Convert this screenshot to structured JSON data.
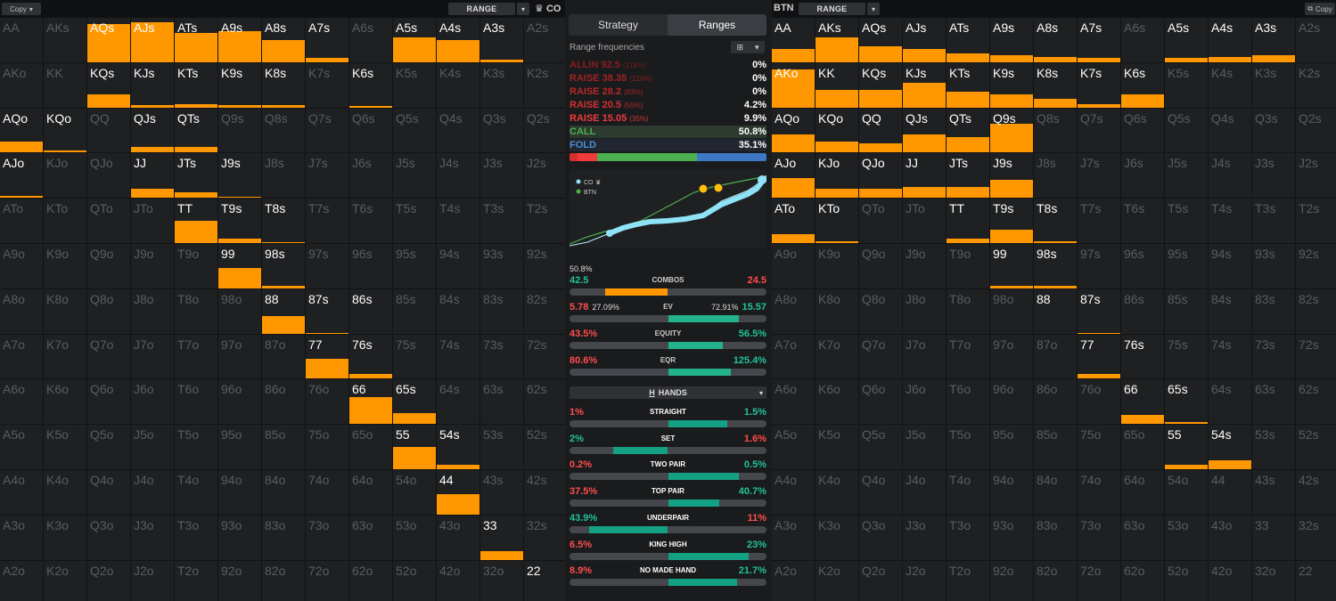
{
  "left_panel": {
    "copy_label": "Copy",
    "range_label": "RANGE",
    "position": "CO",
    "hands": [
      [
        "AA",
        "AKs",
        "AQs",
        "AJs",
        "ATs",
        "A9s",
        "A8s",
        "A7s",
        "A6s",
        "A5s",
        "A4s",
        "A3s",
        "A2s"
      ],
      [
        "AKo",
        "KK",
        "KQs",
        "KJs",
        "KTs",
        "K9s",
        "K8s",
        "K7s",
        "K6s",
        "K5s",
        "K4s",
        "K3s",
        "K2s"
      ],
      [
        "AQo",
        "KQo",
        "QQ",
        "QJs",
        "QTs",
        "Q9s",
        "Q8s",
        "Q7s",
        "Q6s",
        "Q5s",
        "Q4s",
        "Q3s",
        "Q2s"
      ],
      [
        "AJo",
        "KJo",
        "QJo",
        "JJ",
        "JTs",
        "J9s",
        "J8s",
        "J7s",
        "J6s",
        "J5s",
        "J4s",
        "J3s",
        "J2s"
      ],
      [
        "ATo",
        "KTo",
        "QTo",
        "JTo",
        "TT",
        "T9s",
        "T8s",
        "T7s",
        "T6s",
        "T5s",
        "T4s",
        "T3s",
        "T2s"
      ],
      [
        "A9o",
        "K9o",
        "Q9o",
        "J9o",
        "T9o",
        "99",
        "98s",
        "97s",
        "96s",
        "95s",
        "94s",
        "93s",
        "92s"
      ],
      [
        "A8o",
        "K8o",
        "Q8o",
        "J8o",
        "T8o",
        "98o",
        "88",
        "87s",
        "86s",
        "85s",
        "84s",
        "83s",
        "82s"
      ],
      [
        "A7o",
        "K7o",
        "Q7o",
        "J7o",
        "T7o",
        "97o",
        "87o",
        "77",
        "76s",
        "75s",
        "74s",
        "73s",
        "72s"
      ],
      [
        "A6o",
        "K6o",
        "Q6o",
        "J6o",
        "T6o",
        "96o",
        "86o",
        "76o",
        "66",
        "65s",
        "64s",
        "63s",
        "62s"
      ],
      [
        "A5o",
        "K5o",
        "Q5o",
        "J5o",
        "T5o",
        "95o",
        "85o",
        "75o",
        "65o",
        "55",
        "54s",
        "53s",
        "52s"
      ],
      [
        "A4o",
        "K4o",
        "Q4o",
        "J4o",
        "T4o",
        "94o",
        "84o",
        "74o",
        "64o",
        "54o",
        "44",
        "43s",
        "42s"
      ],
      [
        "A3o",
        "K3o",
        "Q3o",
        "J3o",
        "T3o",
        "93o",
        "83o",
        "73o",
        "63o",
        "53o",
        "43o",
        "33",
        "32s"
      ],
      [
        "A2o",
        "K2o",
        "Q2o",
        "J2o",
        "T2o",
        "92o",
        "82o",
        "72o",
        "62o",
        "52o",
        "42o",
        "32o",
        "22"
      ]
    ],
    "fills": [
      [
        0,
        0,
        0.85,
        0.9,
        0.65,
        0.7,
        0.5,
        0.1,
        0,
        0.55,
        0.5,
        0.05,
        0
      ],
      [
        0,
        0,
        0.3,
        0.05,
        0.08,
        0.05,
        0.05,
        0,
        0.03,
        0,
        0,
        0,
        0
      ],
      [
        0.25,
        0.05,
        0,
        0.12,
        0.12,
        0,
        0,
        0,
        0,
        0,
        0,
        0,
        0
      ],
      [
        0.05,
        0,
        0,
        0.2,
        0.12,
        0.02,
        0,
        0,
        0,
        0,
        0,
        0,
        0
      ],
      [
        0,
        0,
        0,
        0,
        0.5,
        0.1,
        0.02,
        0,
        0,
        0,
        0,
        0,
        0
      ],
      [
        0,
        0,
        0,
        0,
        0,
        0.45,
        0.05,
        0,
        0,
        0,
        0,
        0,
        0
      ],
      [
        0,
        0,
        0,
        0,
        0,
        0,
        0.4,
        0.02,
        0,
        0,
        0,
        0,
        0
      ],
      [
        0,
        0,
        0,
        0,
        0,
        0,
        0,
        0.45,
        0.1,
        0,
        0,
        0,
        0
      ],
      [
        0,
        0,
        0,
        0,
        0,
        0,
        0,
        0,
        0.6,
        0.25,
        0,
        0,
        0
      ],
      [
        0,
        0,
        0,
        0,
        0,
        0,
        0,
        0,
        0,
        0.5,
        0.1,
        0,
        0
      ],
      [
        0,
        0,
        0,
        0,
        0,
        0,
        0,
        0,
        0,
        0,
        0.45,
        0,
        0
      ],
      [
        0,
        0,
        0,
        0,
        0,
        0,
        0,
        0,
        0,
        0,
        0,
        0.2,
        0
      ],
      [
        0,
        0,
        0,
        0,
        0,
        0,
        0,
        0,
        0,
        0,
        0,
        0,
        0
      ]
    ],
    "active": [
      [
        0,
        0,
        1,
        1,
        1,
        1,
        1,
        1,
        0,
        1,
        1,
        1,
        0
      ],
      [
        0,
        0,
        1,
        1,
        1,
        1,
        1,
        0,
        1,
        0,
        0,
        0,
        0
      ],
      [
        1,
        1,
        0,
        1,
        1,
        0,
        0,
        0,
        0,
        0,
        0,
        0,
        0
      ],
      [
        1,
        0,
        0,
        1,
        1,
        1,
        0,
        0,
        0,
        0,
        0,
        0,
        0
      ],
      [
        0,
        0,
        0,
        0,
        1,
        1,
        1,
        0,
        0,
        0,
        0,
        0,
        0
      ],
      [
        0,
        0,
        0,
        0,
        0,
        1,
        1,
        0,
        0,
        0,
        0,
        0,
        0
      ],
      [
        0,
        0,
        0,
        0,
        0,
        0,
        1,
        1,
        1,
        0,
        0,
        0,
        0
      ],
      [
        0,
        0,
        0,
        0,
        0,
        0,
        0,
        1,
        1,
        0,
        0,
        0,
        0
      ],
      [
        0,
        0,
        0,
        0,
        0,
        0,
        0,
        0,
        1,
        1,
        0,
        0,
        0
      ],
      [
        0,
        0,
        0,
        0,
        0,
        0,
        0,
        0,
        0,
        1,
        1,
        0,
        0
      ],
      [
        0,
        0,
        0,
        0,
        0,
        0,
        0,
        0,
        0,
        0,
        1,
        0,
        0
      ],
      [
        0,
        0,
        0,
        0,
        0,
        0,
        0,
        0,
        0,
        0,
        0,
        1,
        0
      ],
      [
        0,
        0,
        0,
        0,
        0,
        0,
        0,
        0,
        0,
        0,
        0,
        0,
        1
      ]
    ]
  },
  "right_panel": {
    "position": "BTN",
    "range_label": "RANGE",
    "copy_label": "Copy",
    "fills": [
      [
        0.3,
        0.55,
        0.35,
        0.3,
        0.2,
        0.15,
        0.12,
        0.1,
        0,
        0.1,
        0.12,
        0.15,
        0
      ],
      [
        0.85,
        0.4,
        0.4,
        0.55,
        0.35,
        0.3,
        0.2,
        0.08,
        0.3,
        0,
        0,
        0,
        0
      ],
      [
        0.4,
        0.25,
        0.2,
        0.4,
        0.35,
        0.65,
        0,
        0,
        0,
        0,
        0,
        0,
        0
      ],
      [
        0.45,
        0.2,
        0.2,
        0.25,
        0.25,
        0.4,
        0,
        0,
        0,
        0,
        0,
        0,
        0
      ],
      [
        0.2,
        0.05,
        0,
        0,
        0.1,
        0.3,
        0.05,
        0,
        0,
        0,
        0,
        0,
        0
      ],
      [
        0,
        0,
        0,
        0,
        0,
        0.05,
        0.05,
        0,
        0,
        0,
        0,
        0,
        0
      ],
      [
        0,
        0,
        0,
        0,
        0,
        0,
        0,
        0.02,
        0,
        0,
        0,
        0,
        0
      ],
      [
        0,
        0,
        0,
        0,
        0,
        0,
        0,
        0.1,
        0,
        0,
        0,
        0,
        0
      ],
      [
        0,
        0,
        0,
        0,
        0,
        0,
        0,
        0,
        0.2,
        0.05,
        0,
        0,
        0
      ],
      [
        0,
        0,
        0,
        0,
        0,
        0,
        0,
        0,
        0,
        0.1,
        0.2,
        0,
        0
      ],
      [
        0,
        0,
        0,
        0,
        0,
        0,
        0,
        0,
        0,
        0,
        0,
        0,
        0
      ],
      [
        0,
        0,
        0,
        0,
        0,
        0,
        0,
        0,
        0,
        0,
        0,
        0,
        0
      ],
      [
        0,
        0,
        0,
        0,
        0,
        0,
        0,
        0,
        0,
        0,
        0,
        0,
        0
      ]
    ],
    "active": [
      [
        1,
        1,
        1,
        1,
        1,
        1,
        1,
        1,
        0,
        1,
        1,
        1,
        0
      ],
      [
        1,
        1,
        1,
        1,
        1,
        1,
        1,
        1,
        1,
        0,
        0,
        0,
        0
      ],
      [
        1,
        1,
        1,
        1,
        1,
        1,
        0,
        0,
        0,
        0,
        0,
        0,
        0
      ],
      [
        1,
        1,
        1,
        1,
        1,
        1,
        0,
        0,
        0,
        0,
        0,
        0,
        0
      ],
      [
        1,
        1,
        0,
        0,
        1,
        1,
        1,
        0,
        0,
        0,
        0,
        0,
        0
      ],
      [
        0,
        0,
        0,
        0,
        0,
        1,
        1,
        0,
        0,
        0,
        0,
        0,
        0
      ],
      [
        0,
        0,
        0,
        0,
        0,
        0,
        1,
        1,
        0,
        0,
        0,
        0,
        0
      ],
      [
        0,
        0,
        0,
        0,
        0,
        0,
        0,
        1,
        1,
        0,
        0,
        0,
        0
      ],
      [
        0,
        0,
        0,
        0,
        0,
        0,
        0,
        0,
        1,
        1,
        0,
        0,
        0
      ],
      [
        0,
        0,
        0,
        0,
        0,
        0,
        0,
        0,
        0,
        1,
        1,
        0,
        0
      ],
      [
        0,
        0,
        0,
        0,
        0,
        0,
        0,
        0,
        0,
        0,
        0,
        0,
        0
      ],
      [
        0,
        0,
        0,
        0,
        0,
        0,
        0,
        0,
        0,
        0,
        0,
        0,
        0
      ],
      [
        0,
        0,
        0,
        0,
        0,
        0,
        0,
        0,
        0,
        0,
        0,
        0,
        0
      ]
    ]
  },
  "middle": {
    "tabs": [
      "Strategy",
      "Ranges"
    ],
    "active_tab": 1,
    "range_frequencies_label": "Range frequencies",
    "frequencies": [
      {
        "name": "ALLIN 92.5",
        "pct": "(318%)",
        "value": "0%",
        "color": "#8b1e1e"
      },
      {
        "name": "RAISE 38.35",
        "pct": "(120%)",
        "value": "0%",
        "color": "#a02424"
      },
      {
        "name": "RAISE 28.2",
        "pct": "(83%)",
        "value": "0%",
        "color": "#b82828"
      },
      {
        "name": "RAISE 20.5",
        "pct": "(55%)",
        "value": "4.2%",
        "color": "#d43030"
      },
      {
        "name": "RAISE 15.05",
        "pct": "(35%)",
        "value": "9.9%",
        "color": "#ef3b3b"
      },
      {
        "name": "CALL",
        "pct": "",
        "value": "50.8%",
        "color": "#4caf50"
      },
      {
        "name": "FOLD",
        "pct": "",
        "value": "35.1%",
        "color": "#4a8fd8"
      }
    ],
    "stack": [
      {
        "w": 4.2,
        "c": "#d43030"
      },
      {
        "w": 9.9,
        "c": "#ef3b3b"
      },
      {
        "w": 50.8,
        "c": "#4caf50"
      },
      {
        "w": 35.1,
        "c": "#3c78c3"
      }
    ],
    "legend": {
      "co": "CO",
      "btn": "BTN"
    },
    "top_value": "50.8%",
    "stats": [
      {
        "label": "COMBOS",
        "left": "42.5",
        "right": "24.5",
        "lsub": "",
        "rsub": "",
        "fill": [
          18,
          50
        ],
        "color": "#ff9800"
      },
      {
        "label": "EV",
        "left": "5.78",
        "right": "15.57",
        "lsub": "27.09%",
        "rsub": "72.91%",
        "fill": [
          50,
          86
        ],
        "color": "#22b38a"
      },
      {
        "label": "EQUITY",
        "left": "43.5%",
        "right": "56.5%",
        "lsub": "",
        "rsub": "",
        "fill": [
          50,
          78
        ],
        "color": "#22b38a"
      },
      {
        "label": "EQR",
        "left": "80.6%",
        "right": "125.4%",
        "lsub": "",
        "rsub": "",
        "fill": [
          50,
          82
        ],
        "color": "#22b38a"
      }
    ],
    "hands_label": "HANDS",
    "hands": [
      {
        "label": "STRAIGHT",
        "left": "1%",
        "right": "1.5%",
        "lc": "red",
        "rc": "green",
        "fill": [
          50,
          80
        ]
      },
      {
        "label": "SET",
        "left": "2%",
        "right": "1.6%",
        "lc": "green",
        "rc": "red",
        "fill": [
          22,
          50
        ]
      },
      {
        "label": "TWO PAIR",
        "left": "0.2%",
        "right": "0.5%",
        "lc": "red",
        "rc": "green",
        "fill": [
          50,
          86
        ]
      },
      {
        "label": "TOP PAIR",
        "left": "37.5%",
        "right": "40.7%",
        "lc": "red",
        "rc": "green",
        "fill": [
          50,
          76
        ]
      },
      {
        "label": "UNDERPAIR",
        "left": "43.9%",
        "right": "11%",
        "lc": "green",
        "rc": "red",
        "fill": [
          10,
          50
        ]
      },
      {
        "label": "KING HIGH",
        "left": "6.5%",
        "right": "23%",
        "lc": "red",
        "rc": "green",
        "fill": [
          50,
          91
        ]
      },
      {
        "label": "NO MADE HAND",
        "left": "8.9%",
        "right": "21.7%",
        "lc": "red",
        "rc": "green",
        "fill": [
          50,
          85
        ]
      }
    ]
  }
}
